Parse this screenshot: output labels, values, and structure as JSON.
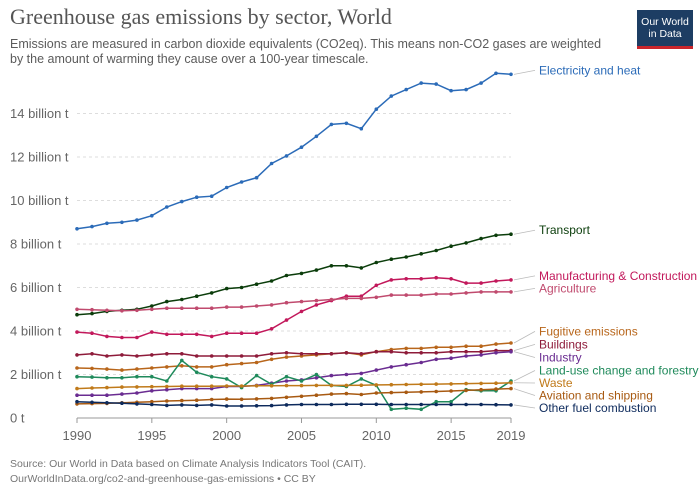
{
  "chart_data": {
    "type": "line",
    "title": "Greenhouse gas emissions by sector, World",
    "subtitle": "Emissions are measured in carbon dioxide equivalents (CO2eq). This means non-CO2 gases are weighted by the amount of warming they cause over a 100-year timescale.",
    "xlabel": "",
    "ylabel": "",
    "x": [
      1990,
      1991,
      1992,
      1993,
      1994,
      1995,
      1996,
      1997,
      1998,
      1999,
      2000,
      2001,
      2002,
      2003,
      2004,
      2005,
      2006,
      2007,
      2008,
      2009,
      2010,
      2011,
      2012,
      2013,
      2014,
      2015,
      2016,
      2017,
      2018,
      2019
    ],
    "x_ticks": [
      {
        "value": 1990,
        "label": "1990"
      },
      {
        "value": 1995,
        "label": "1995"
      },
      {
        "value": 2000,
        "label": "2000"
      },
      {
        "value": 2005,
        "label": "2005"
      },
      {
        "value": 2010,
        "label": "2010"
      },
      {
        "value": 2015,
        "label": "2015"
      },
      {
        "value": 2019,
        "label": "2019"
      }
    ],
    "y_ticks": [
      {
        "value": 0,
        "label": "0 t"
      },
      {
        "value": 2,
        "label": "2 billion t"
      },
      {
        "value": 4,
        "label": "4 billion t"
      },
      {
        "value": 6,
        "label": "6 billion t"
      },
      {
        "value": 8,
        "label": "8 billion t"
      },
      {
        "value": 10,
        "label": "10 billion t"
      },
      {
        "value": 12,
        "label": "12 billion t"
      },
      {
        "value": 14,
        "label": "14 billion t"
      }
    ],
    "ylim": [
      0,
      16
    ],
    "xlim": [
      1990,
      2019
    ],
    "grid": "horizontal dashed",
    "legend": "right, labels at line ends",
    "series": [
      {
        "name": "Electricity and heat",
        "color": "#2b6bb8",
        "label_y": 15.8,
        "values": [
          8.7,
          8.8,
          8.95,
          9.0,
          9.1,
          9.3,
          9.7,
          9.95,
          10.15,
          10.2,
          10.6,
          10.85,
          11.05,
          11.7,
          12.05,
          12.45,
          12.95,
          13.5,
          13.55,
          13.3,
          14.2,
          14.8,
          15.1,
          15.4,
          15.35,
          15.05,
          15.1,
          15.4,
          15.85,
          15.8
        ]
      },
      {
        "name": "Transport",
        "color": "#0b3d0b",
        "label_y": 8.45,
        "values": [
          4.75,
          4.8,
          4.9,
          4.95,
          5.0,
          5.15,
          5.35,
          5.45,
          5.6,
          5.75,
          5.95,
          6.0,
          6.15,
          6.3,
          6.55,
          6.65,
          6.8,
          7.0,
          7.0,
          6.9,
          7.15,
          7.3,
          7.4,
          7.55,
          7.7,
          7.9,
          8.05,
          8.25,
          8.4,
          8.45
        ]
      },
      {
        "name": "Manufacturing & Construction",
        "color": "#c2185b",
        "label_y": 6.35,
        "values": [
          3.95,
          3.9,
          3.75,
          3.7,
          3.7,
          3.95,
          3.85,
          3.85,
          3.85,
          3.75,
          3.9,
          3.9,
          3.9,
          4.1,
          4.5,
          4.9,
          5.2,
          5.4,
          5.6,
          5.6,
          6.1,
          6.35,
          6.4,
          6.4,
          6.45,
          6.4,
          6.2,
          6.2,
          6.3,
          6.35
        ]
      },
      {
        "name": "Agriculture",
        "color": "#c04a6e",
        "label_y": 5.8,
        "values": [
          5.0,
          4.98,
          4.95,
          4.93,
          4.95,
          5.0,
          5.05,
          5.05,
          5.05,
          5.05,
          5.1,
          5.1,
          5.15,
          5.2,
          5.3,
          5.35,
          5.4,
          5.45,
          5.5,
          5.5,
          5.55,
          5.65,
          5.65,
          5.65,
          5.7,
          5.7,
          5.75,
          5.8,
          5.8,
          5.8
        ]
      },
      {
        "name": "Fugitive emissions",
        "color": "#b8661b",
        "label_y": 3.8,
        "values": [
          2.3,
          2.28,
          2.25,
          2.2,
          2.25,
          2.3,
          2.35,
          2.4,
          2.35,
          2.35,
          2.45,
          2.5,
          2.55,
          2.7,
          2.8,
          2.85,
          2.9,
          2.95,
          3.0,
          2.9,
          3.05,
          3.15,
          3.2,
          3.2,
          3.25,
          3.25,
          3.3,
          3.3,
          3.4,
          3.45
        ]
      },
      {
        "name": "Buildings",
        "color": "#8e1b3a",
        "label_y": 3.2,
        "values": [
          2.9,
          2.95,
          2.85,
          2.9,
          2.85,
          2.9,
          2.95,
          2.95,
          2.85,
          2.85,
          2.85,
          2.85,
          2.85,
          2.95,
          3.0,
          2.95,
          2.95,
          2.95,
          3.0,
          2.95,
          3.05,
          3.05,
          3.0,
          3.0,
          3.0,
          3.05,
          3.05,
          3.05,
          3.1,
          3.1
        ]
      },
      {
        "name": "Industry",
        "color": "#6a2c91",
        "label_y": 2.6,
        "values": [
          1.05,
          1.05,
          1.05,
          1.1,
          1.15,
          1.25,
          1.3,
          1.35,
          1.35,
          1.35,
          1.45,
          1.45,
          1.5,
          1.6,
          1.7,
          1.75,
          1.85,
          1.95,
          2.0,
          2.05,
          2.2,
          2.35,
          2.45,
          2.55,
          2.7,
          2.75,
          2.85,
          2.9,
          3.0,
          3.05
        ]
      },
      {
        "name": "Land-use change and forestry",
        "color": "#1f8a5b",
        "label_y": 2.0,
        "values": [
          1.9,
          1.88,
          1.85,
          1.85,
          1.9,
          1.9,
          1.7,
          2.65,
          2.1,
          1.9,
          1.8,
          1.4,
          1.95,
          1.55,
          1.9,
          1.7,
          2.0,
          1.5,
          1.45,
          1.8,
          1.5,
          0.4,
          0.45,
          0.4,
          0.75,
          0.75,
          1.3,
          1.25,
          1.25,
          1.7
        ]
      },
      {
        "name": "Waste",
        "color": "#c07a1a",
        "label_y": 1.45,
        "values": [
          1.35,
          1.38,
          1.4,
          1.42,
          1.43,
          1.44,
          1.45,
          1.46,
          1.46,
          1.46,
          1.47,
          1.47,
          1.48,
          1.48,
          1.49,
          1.49,
          1.5,
          1.5,
          1.5,
          1.51,
          1.52,
          1.53,
          1.54,
          1.55,
          1.56,
          1.57,
          1.58,
          1.59,
          1.6,
          1.62
        ]
      },
      {
        "name": "Aviation and shipping",
        "color": "#a85a12",
        "label_y": 0.85,
        "values": [
          0.65,
          0.66,
          0.67,
          0.7,
          0.72,
          0.75,
          0.78,
          0.8,
          0.82,
          0.85,
          0.87,
          0.86,
          0.88,
          0.9,
          0.95,
          1.0,
          1.05,
          1.1,
          1.12,
          1.08,
          1.15,
          1.17,
          1.18,
          1.2,
          1.22,
          1.24,
          1.27,
          1.3,
          1.33,
          1.35
        ]
      },
      {
        "name": "Other fuel combustion",
        "color": "#0d2a5c",
        "label_y": 0.3,
        "values": [
          0.75,
          0.72,
          0.7,
          0.68,
          0.65,
          0.62,
          0.58,
          0.6,
          0.58,
          0.6,
          0.55,
          0.55,
          0.56,
          0.57,
          0.6,
          0.62,
          0.62,
          0.62,
          0.63,
          0.63,
          0.63,
          0.62,
          0.62,
          0.62,
          0.62,
          0.62,
          0.62,
          0.62,
          0.61,
          0.6
        ]
      }
    ]
  },
  "logo": {
    "line1": "Our World",
    "line2": "in Data"
  },
  "footer": {
    "source": "Source: Our World in Data based on Climate Analysis Indicators Tool (CAIT).",
    "link": "OurWorldInData.org/co2-and-greenhouse-gas-emissions • CC BY"
  }
}
